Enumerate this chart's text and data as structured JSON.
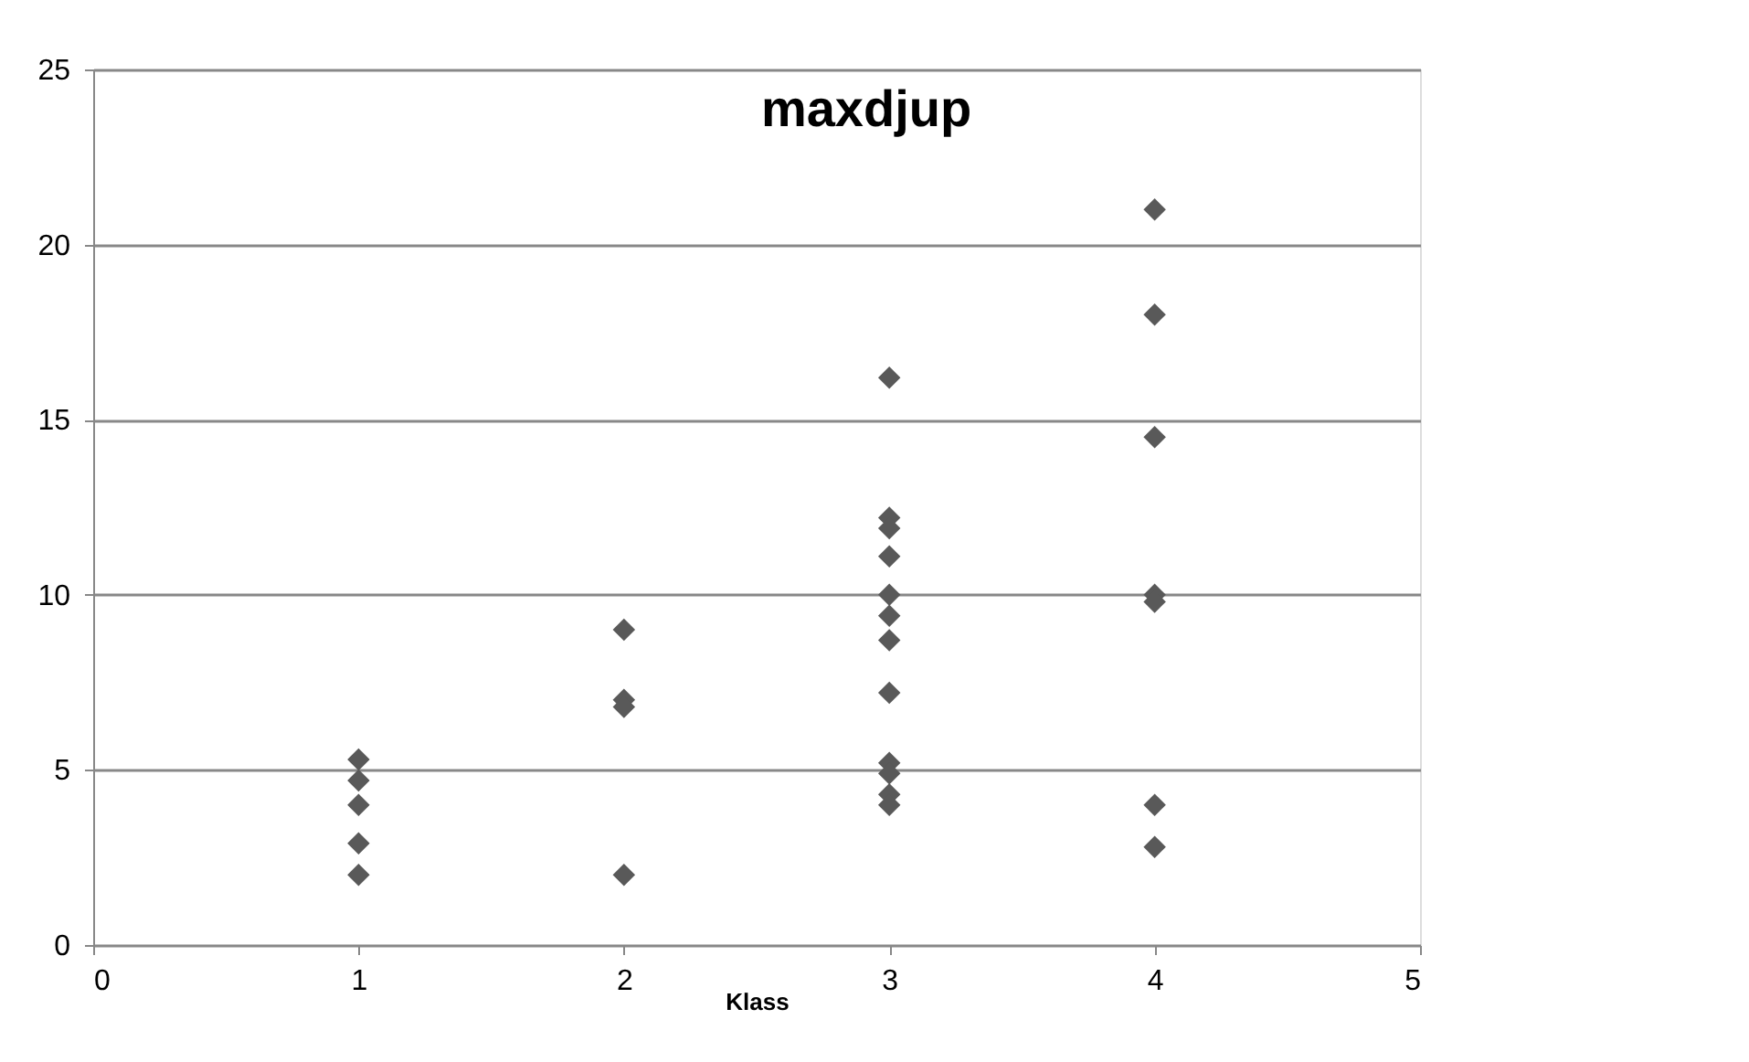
{
  "chart_data": {
    "type": "scatter",
    "title": "maxdjup",
    "xlabel": "Klass",
    "x": [
      1,
      1,
      1,
      1,
      1,
      2,
      2,
      2,
      2,
      3,
      3,
      3,
      3,
      3,
      3,
      3,
      3,
      3,
      3,
      3,
      3,
      4,
      4,
      4,
      4,
      4,
      4,
      4
    ],
    "series": [
      {
        "color": "#595959",
        "values": [
          5.3,
          4.7,
          4.0,
          2.9,
          2.0,
          9.0,
          7.0,
          6.8,
          2.0,
          16.2,
          12.2,
          11.9,
          11.1,
          10.0,
          9.4,
          8.7,
          7.2,
          5.2,
          4.9,
          4.3,
          4.0,
          21.0,
          18.0,
          14.5,
          10.0,
          9.8,
          4.0,
          2.8
        ]
      }
    ],
    "xlim": [
      0,
      5
    ],
    "xticks": [
      0,
      1,
      2,
      3,
      4,
      5
    ],
    "ylim": [
      0,
      25
    ],
    "yticks": [
      0,
      5,
      10,
      15,
      20,
      25
    ],
    "grid": "y",
    "legend": false,
    "marker": "diamond"
  }
}
